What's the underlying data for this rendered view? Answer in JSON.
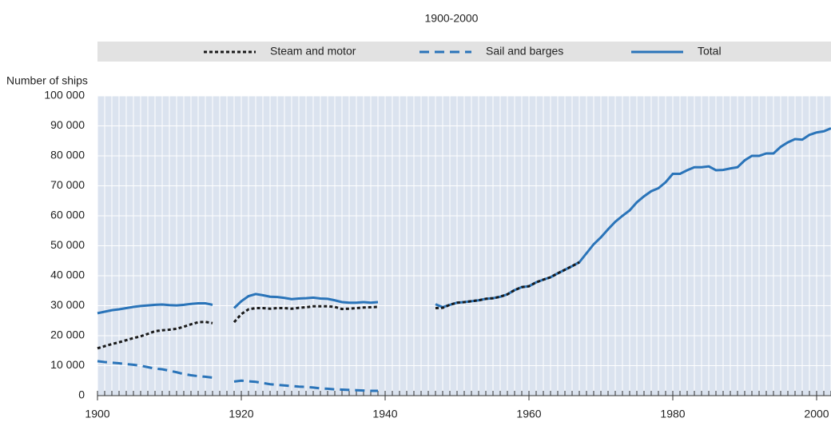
{
  "chart_data": {
    "type": "line",
    "subtitle": "1900-2000",
    "ylabel": "Number of ships",
    "x": [
      1900,
      1901,
      1902,
      1903,
      1904,
      1905,
      1906,
      1907,
      1908,
      1909,
      1910,
      1911,
      1912,
      1913,
      1914,
      1915,
      1916,
      1917,
      1918,
      1919,
      1920,
      1921,
      1922,
      1923,
      1924,
      1925,
      1926,
      1927,
      1928,
      1929,
      1930,
      1931,
      1932,
      1933,
      1934,
      1935,
      1936,
      1937,
      1938,
      1939,
      1940,
      1941,
      1942,
      1943,
      1944,
      1945,
      1946,
      1947,
      1948,
      1949,
      1950,
      1951,
      1952,
      1953,
      1954,
      1955,
      1956,
      1957,
      1958,
      1959,
      1960,
      1961,
      1962,
      1963,
      1964,
      1965,
      1966,
      1967,
      1968,
      1969,
      1970,
      1971,
      1972,
      1973,
      1974,
      1975,
      1976,
      1977,
      1978,
      1979,
      1980,
      1981,
      1982,
      1983,
      1984,
      1985,
      1986,
      1987,
      1988,
      1989,
      1990,
      1991,
      1992,
      1993,
      1994,
      1995,
      1996,
      1997,
      1998,
      1999,
      2000,
      2001,
      2002
    ],
    "series": [
      {
        "name": "Steam and motor",
        "color": "#1a1a1a",
        "style": "dotted",
        "values": [
          15800,
          16500,
          17200,
          17800,
          18500,
          19200,
          19800,
          20600,
          21500,
          21800,
          22000,
          22300,
          23000,
          23800,
          24500,
          24600,
          24200,
          null,
          null,
          24500,
          27200,
          28800,
          29200,
          29200,
          29000,
          29200,
          29200,
          29000,
          29300,
          29500,
          29800,
          29800,
          29800,
          29600,
          28900,
          29000,
          29200,
          29400,
          29500,
          29600,
          null,
          null,
          null,
          null,
          null,
          null,
          null,
          29200,
          29300,
          30300,
          31000,
          31200,
          31500,
          31800,
          32300,
          32500,
          33000,
          33800,
          35200,
          36200,
          36500,
          37800,
          38700,
          39500,
          40800,
          42000,
          43200,
          44500,
          null,
          null,
          null,
          null,
          null,
          null,
          null,
          null,
          null,
          null,
          null,
          null,
          null,
          null,
          null,
          null,
          null,
          null,
          null,
          null,
          null,
          null,
          null,
          null,
          null,
          null,
          null,
          null,
          null,
          null,
          null,
          null,
          null,
          null,
          null
        ]
      },
      {
        "name": "Sail and barges",
        "color": "#2a74b9",
        "style": "dashed",
        "values": [
          11500,
          11200,
          11000,
          10800,
          10500,
          10300,
          10000,
          9500,
          9000,
          8800,
          8300,
          7800,
          7200,
          6800,
          6500,
          6300,
          6000,
          null,
          null,
          4700,
          5000,
          4800,
          4600,
          4200,
          3800,
          3600,
          3400,
          3200,
          3000,
          2900,
          2700,
          2400,
          2300,
          2100,
          2000,
          1900,
          1800,
          1700,
          1600,
          1600,
          null,
          null,
          null,
          null,
          null,
          null,
          null,
          1200,
          null,
          null,
          null,
          null,
          null,
          null,
          null,
          null,
          null,
          null,
          null,
          null,
          null,
          null,
          null,
          null,
          null,
          null,
          null,
          null,
          null,
          null,
          null,
          null,
          null,
          null,
          null,
          null,
          null,
          null,
          null,
          null,
          null,
          null,
          null,
          null,
          null,
          null,
          null,
          null,
          null,
          null,
          null,
          null,
          null,
          null,
          null,
          null,
          null,
          null,
          null,
          null,
          null,
          null,
          null
        ]
      },
      {
        "name": "Total",
        "color": "#2a74b9",
        "style": "solid",
        "values": [
          27500,
          28000,
          28500,
          28800,
          29200,
          29600,
          29900,
          30100,
          30300,
          30400,
          30200,
          30100,
          30300,
          30600,
          30800,
          30800,
          30300,
          null,
          null,
          29200,
          31500,
          33200,
          33900,
          33500,
          33000,
          32900,
          32600,
          32200,
          32400,
          32500,
          32700,
          32400,
          32300,
          31800,
          31200,
          31000,
          31000,
          31200,
          31000,
          31200,
          null,
          null,
          null,
          null,
          null,
          null,
          null,
          30500,
          29500,
          30300,
          31000,
          31200,
          31500,
          31800,
          32300,
          32500,
          33000,
          33800,
          35200,
          36200,
          36500,
          37800,
          38700,
          39500,
          40800,
          42000,
          43200,
          44500,
          47500,
          50500,
          52800,
          55500,
          58000,
          60000,
          61800,
          64500,
          66500,
          68200,
          69200,
          71200,
          74000,
          74000,
          75200,
          76200,
          76200,
          76500,
          75200,
          75300,
          75800,
          76200,
          78500,
          80000,
          80000,
          80800,
          80800,
          83000,
          84500,
          85600,
          85400,
          87000,
          87800,
          88200,
          89200
        ]
      }
    ],
    "xlim": [
      1900,
      2002
    ],
    "xticks": [
      1900,
      1920,
      1940,
      1960,
      1980,
      2000
    ],
    "ylim": [
      0,
      100000
    ],
    "yticks": [
      0,
      {
        "value": 10000,
        "label": "10 000"
      },
      {
        "value": 20000,
        "label": "20 000"
      },
      {
        "value": 30000,
        "label": "30 000"
      },
      {
        "value": 40000,
        "label": "40 000"
      },
      {
        "value": 50000,
        "label": "50 000"
      },
      {
        "value": 60000,
        "label": "60 000"
      },
      {
        "value": 70000,
        "label": "70 000"
      },
      {
        "value": 80000,
        "label": "80 000"
      },
      {
        "value": 90000,
        "label": "90 000"
      },
      {
        "value": 100000,
        "label": "100 000"
      }
    ],
    "grid": true,
    "legend": "top"
  }
}
